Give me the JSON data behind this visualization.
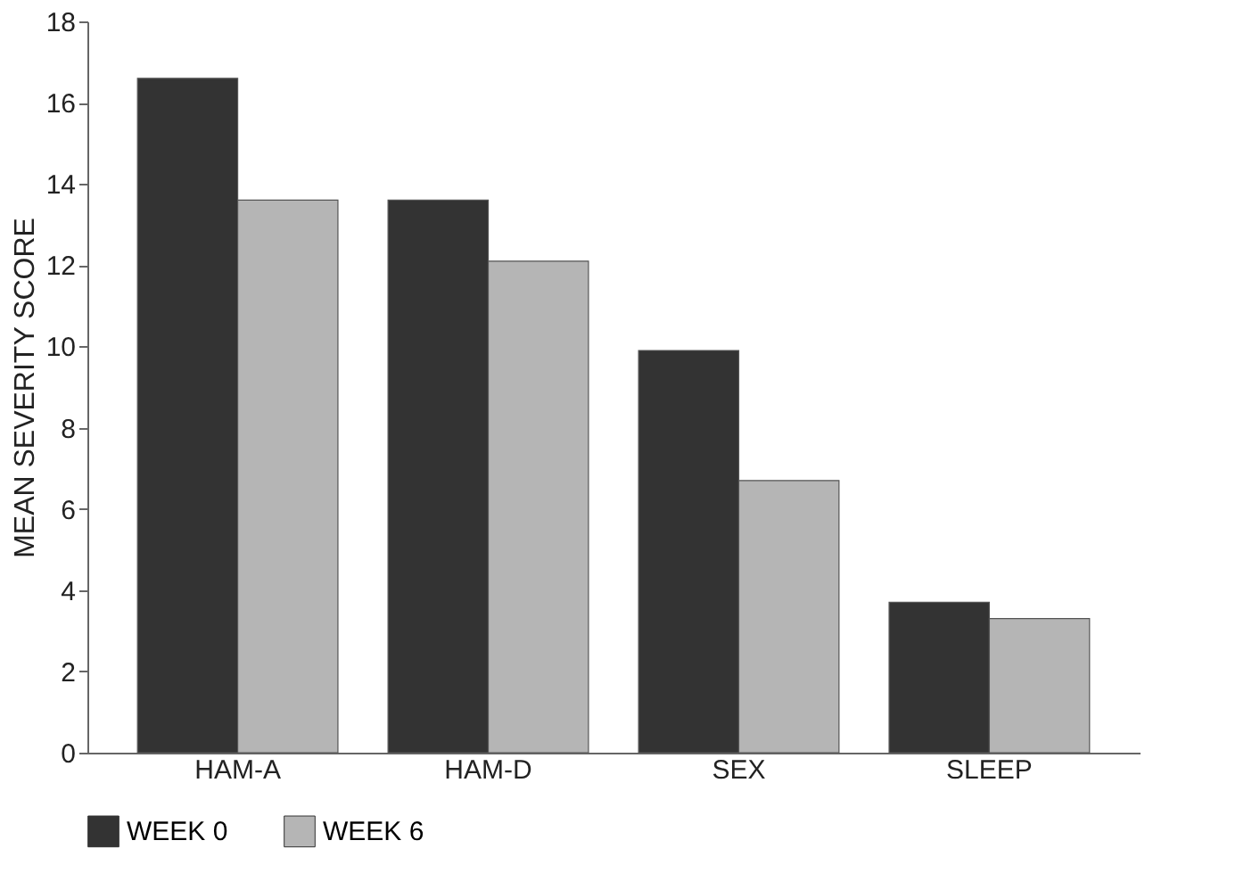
{
  "chart_data": {
    "type": "bar",
    "ylabel": "MEAN SEVERITY SCORE",
    "categories": [
      "HAM-A",
      "HAM-D",
      "SEX",
      "SLEEP"
    ],
    "series": [
      {
        "name": "WEEK 0",
        "color": "#333333",
        "values": [
          16.6,
          13.6,
          9.9,
          3.7
        ]
      },
      {
        "name": "WEEK 6",
        "color": "#b5b5b5",
        "values": [
          13.6,
          12.1,
          6.7,
          3.3
        ]
      }
    ],
    "ylim": [
      0,
      18
    ],
    "yticks": [
      0,
      2,
      4,
      6,
      8,
      10,
      12,
      14,
      16,
      18
    ],
    "grid": false,
    "legend": "bottom"
  }
}
